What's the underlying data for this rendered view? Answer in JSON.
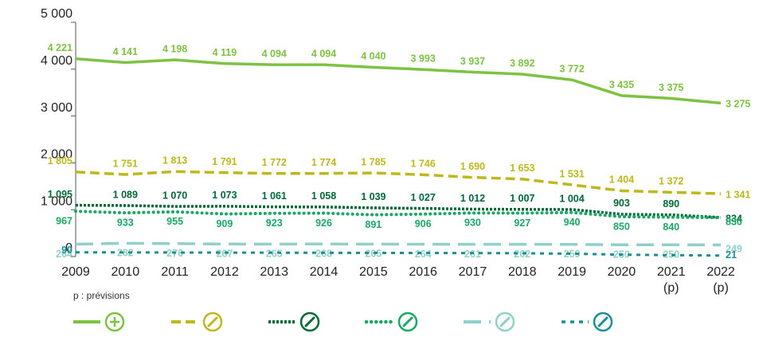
{
  "chart_data": {
    "type": "line",
    "categories": [
      "2009",
      "2010",
      "2011",
      "2012",
      "2013",
      "2014",
      "2015",
      "2016",
      "2017",
      "2018",
      "2019",
      "2020",
      "2021",
      "2022"
    ],
    "category_notes": [
      null,
      null,
      null,
      null,
      null,
      null,
      null,
      null,
      null,
      null,
      null,
      null,
      "(p)",
      "(p)"
    ],
    "footnote": "p : prévisions",
    "ylim": [
      0,
      5000
    ],
    "yticks": [
      0,
      {
        "value": 1000,
        "label": "1 000"
      },
      {
        "value": 2000,
        "label": "2 000"
      },
      {
        "value": 3000,
        "label": "3 000"
      },
      {
        "value": 4000,
        "label": "4 000"
      },
      {
        "value": 5000,
        "label": "5 000"
      }
    ],
    "series": [
      {
        "color": "#7dc242",
        "dash": "solid",
        "values": [
          4221,
          4141,
          4198,
          4119,
          4094,
          4094,
          4040,
          3993,
          3937,
          3892,
          3772,
          3435,
          3375,
          3275
        ],
        "value_labels": [
          "4 221",
          "4 141",
          "4 198",
          "4 119",
          "4 094",
          "4 094",
          "4 040",
          "3 993",
          "3 937",
          "3 892",
          "3 772",
          "3 435",
          "3 375",
          "3 275"
        ]
      },
      {
        "color": "#bdb81c",
        "dash": "dashed",
        "values": [
          1805,
          1751,
          1813,
          1791,
          1772,
          1774,
          1785,
          1746,
          1690,
          1653,
          1531,
          1404,
          1372,
          1341
        ],
        "value_labels": [
          "1 805",
          "1 751",
          "1 813",
          "1 791",
          "1 772",
          "1 774",
          "1 785",
          "1 746",
          "1 690",
          "1 653",
          "1 531",
          "1 404",
          "1 372",
          "1 341"
        ]
      },
      {
        "color": "#006837",
        "dash": "dotted",
        "values": [
          1095,
          1089,
          1070,
          1073,
          1061,
          1058,
          1039,
          1027,
          1012,
          1007,
          1004,
          903,
          890,
          834
        ],
        "value_labels": [
          "1 095",
          "1 089",
          "1 070",
          "1 073",
          "1 061",
          "1 058",
          "1 039",
          "1 027",
          "1 012",
          "1 007",
          "1 004",
          "903",
          "890",
          "834"
        ]
      },
      {
        "color": "#1aa865",
        "dash": "dotted-sparse",
        "values": [
          967,
          933,
          955,
          909,
          923,
          926,
          891,
          906,
          930,
          927,
          940,
          850,
          840,
          830
        ]
      },
      {
        "color": "#8fd0c8",
        "dash": "long-dash",
        "values": [
          264,
          282,
          276,
          267,
          265,
          268,
          265,
          264,
          261,
          262,
          259,
          250,
          250,
          249
        ]
      },
      {
        "color": "#1a8e95",
        "dash": "short-dash",
        "values": [
          90,
          88,
          86,
          84,
          82,
          80,
          78,
          76,
          74,
          70,
          60,
          40,
          30,
          21
        ],
        "value_labels": [
          "90",
          null,
          null,
          null,
          null,
          null,
          null,
          null,
          null,
          null,
          null,
          null,
          null,
          "21"
        ]
      }
    ]
  }
}
